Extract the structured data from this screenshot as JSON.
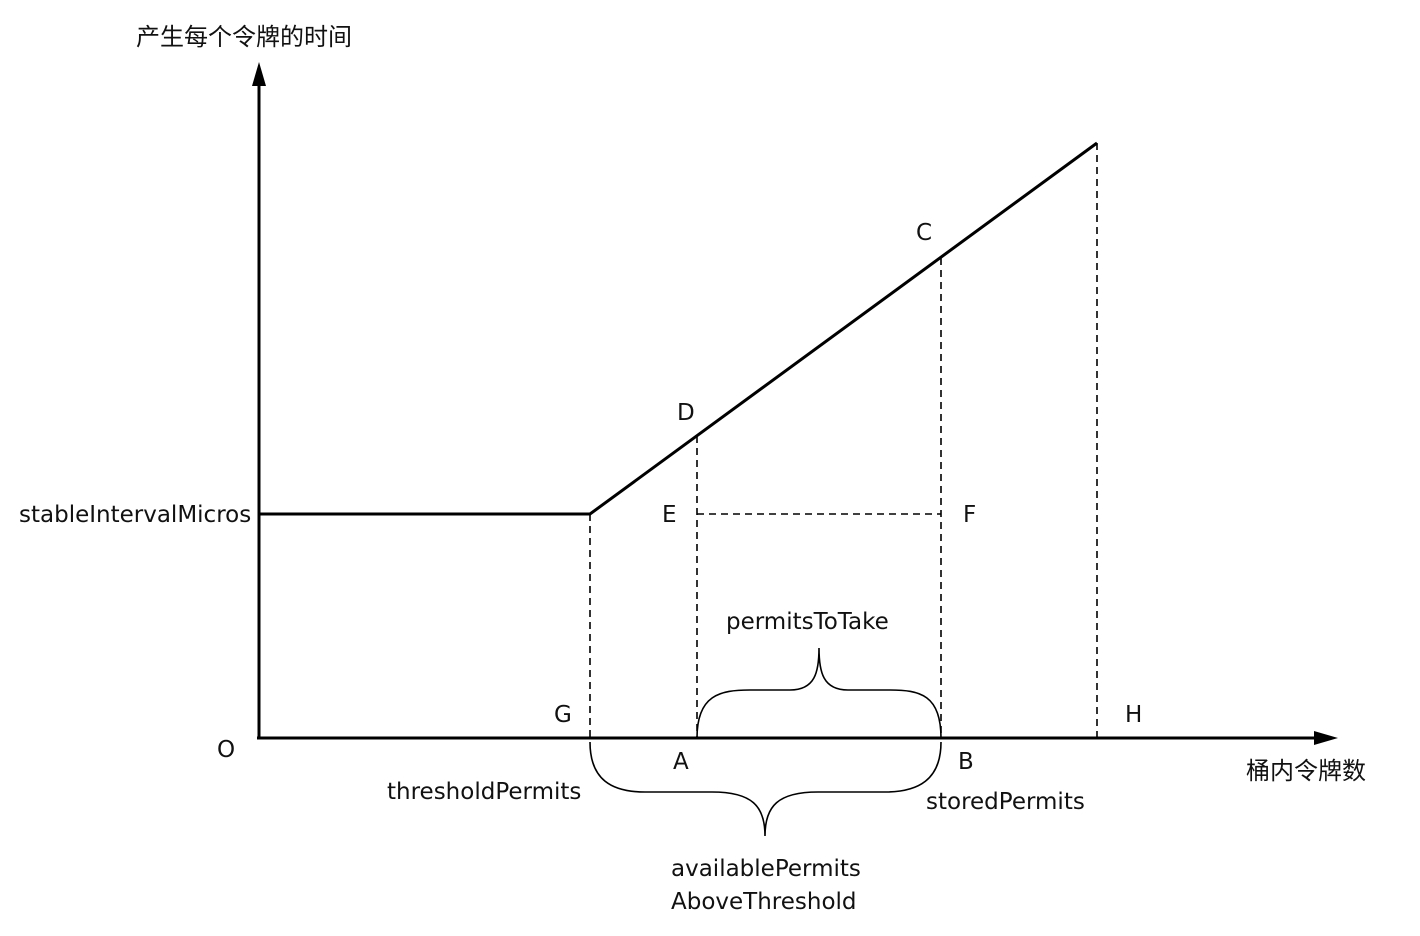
{
  "axes": {
    "y_label": "产生每个令牌的时间",
    "x_label": "桶内令牌数",
    "origin": "O"
  },
  "points": {
    "A": "A",
    "B": "B",
    "C": "C",
    "D": "D",
    "E": "E",
    "F": "F",
    "G": "G",
    "H": "H"
  },
  "labels": {
    "stable_interval": "stableIntervalMicros",
    "threshold_permits": "thresholdPermits",
    "stored_permits": "storedPermits",
    "permits_to_take": "permitsToTake",
    "available_line1": "availablePermits",
    "available_line2": "AboveThreshold"
  }
}
